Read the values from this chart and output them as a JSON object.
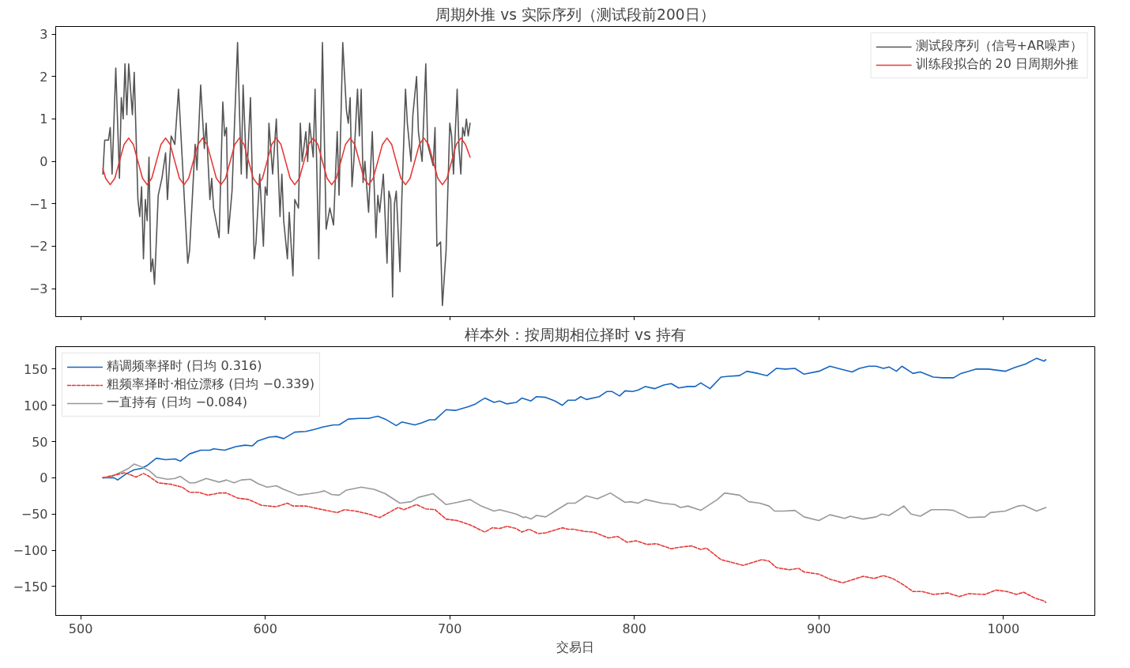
{
  "chart_data": [
    {
      "type": "line",
      "title": "周期外推 vs 实际序列（测试段前200日）",
      "xlim": [
        486.45,
        1049.55
      ],
      "ylim": [
        -3.66,
        3.18
      ],
      "xticks": [
        500,
        600,
        700,
        800,
        900,
        1000
      ],
      "yticks": [
        {
          "value": -3,
          "label": "−3"
        },
        {
          "value": -2,
          "label": "−2"
        },
        {
          "value": -1,
          "label": "−1"
        },
        0,
        1,
        2,
        3
      ],
      "tick_labels": "y",
      "legend": "top right",
      "series": [
        {
          "name": "测试段序列（信号+AR噪声）",
          "color": "#555555",
          "x": [
            512,
            513,
            515,
            516,
            517,
            519,
            521,
            522,
            523,
            524,
            525,
            526,
            528,
            529,
            531,
            532,
            533,
            534,
            535,
            536,
            537,
            538,
            539,
            540,
            542,
            544,
            546,
            547,
            549,
            551,
            553,
            558,
            559,
            562,
            563,
            565,
            567,
            568,
            570,
            571,
            572,
            575,
            577,
            578,
            579,
            580,
            582,
            585,
            587,
            588,
            590,
            592,
            594,
            595,
            597,
            599,
            600,
            601,
            602,
            604,
            606,
            608,
            609,
            610,
            612,
            613,
            615,
            616,
            618,
            619,
            620,
            622,
            623,
            624,
            626,
            627,
            629,
            631,
            633,
            635,
            637,
            639,
            640,
            642,
            644,
            645,
            646,
            647,
            648,
            650,
            651,
            652,
            653,
            654,
            656,
            658,
            660,
            661,
            662,
            664,
            666,
            667,
            668,
            669,
            670,
            671,
            673,
            674,
            676,
            677,
            679,
            680,
            682,
            683,
            685,
            687,
            688,
            691,
            692,
            693,
            695,
            696,
            698,
            700,
            701,
            702,
            704,
            705,
            706,
            707,
            708,
            709,
            710,
            711
          ],
          "values": [
            -0.3,
            0.5,
            0.5,
            0.8,
            -0.3,
            2.2,
            -0.4,
            1.5,
            1.0,
            2.3,
            1.1,
            2.3,
            1.1,
            2.1,
            -0.9,
            -1.3,
            -0.6,
            -2.3,
            -0.9,
            -1.4,
            0.1,
            -2.6,
            -2.3,
            -2.9,
            -0.8,
            -0.4,
            0.2,
            -0.9,
            0.6,
            0.4,
            1.7,
            -2.4,
            -2.1,
            0.4,
            -0.2,
            1.8,
            0.3,
            0.9,
            -0.9,
            -0.4,
            -1.1,
            -1.8,
            1.4,
            0.6,
            0.8,
            -1.7,
            -0.7,
            2.8,
            -0.3,
            1.8,
            -0.4,
            1.5,
            -2.3,
            -1.9,
            -0.3,
            -2.0,
            -0.6,
            -0.8,
            0.9,
            -0.3,
            1.0,
            -1.3,
            -0.3,
            -1.4,
            -2.3,
            -1.2,
            -2.7,
            -0.9,
            -1.1,
            0.9,
            0.0,
            0.7,
            0.0,
            0.9,
            0.1,
            1.7,
            -2.3,
            2.8,
            -1.6,
            -1.1,
            -1.5,
            0.7,
            -0.8,
            2.8,
            1.2,
            0.9,
            1.5,
            -0.6,
            0.0,
            1.7,
            0.6,
            1.7,
            -0.5,
            0.0,
            -1.2,
            0.7,
            -1.8,
            -0.8,
            -1.2,
            -0.3,
            -2.4,
            -0.7,
            -0.9,
            -3.2,
            -1.0,
            -0.7,
            -2.6,
            -0.9,
            1.7,
            0.9,
            0.0,
            1.1,
            2.0,
            0.7,
            0.0,
            2.3,
            0.4,
            -0.1,
            0.8,
            -2.0,
            -1.9,
            -3.4,
            -2.1,
            0.9,
            0.6,
            -0.3,
            1.7,
            0.3,
            -0.3,
            0.8,
            0.6,
            1.0,
            0.6,
            0.9
          ]
        },
        {
          "name": "训练段拟合的 20 日周期外推",
          "color": "#e53935",
          "x": [
            512,
            513.5,
            516,
            518.5,
            521,
            523.5,
            526,
            528.5,
            531,
            533.5,
            536,
            538.5,
            541,
            543.5,
            546,
            548.5,
            551,
            553.5,
            556,
            558.5,
            561,
            563.5,
            566,
            568.5,
            571,
            573.5,
            576,
            578.5,
            581,
            583.5,
            586,
            588.5,
            591,
            593.5,
            596,
            598.5,
            601,
            603.5,
            606,
            608.5,
            611,
            613.5,
            616,
            618.5,
            621,
            623.5,
            626,
            628.5,
            631,
            633.5,
            636,
            638.5,
            641,
            643.5,
            646,
            648.5,
            651,
            653.5,
            656,
            658.5,
            661,
            663.5,
            666,
            668.5,
            671,
            673.5,
            676,
            678.5,
            681,
            683.5,
            686,
            688.5,
            691,
            693.5,
            696,
            698.5,
            701,
            703.5,
            706,
            708.5,
            711
          ],
          "values": [
            -0.17,
            -0.4,
            -0.55,
            -0.4,
            0,
            0.4,
            0.55,
            0.4,
            0,
            -0.4,
            -0.55,
            -0.4,
            0,
            0.4,
            0.55,
            0.4,
            0,
            -0.4,
            -0.55,
            -0.4,
            0,
            0.4,
            0.55,
            0.4,
            0,
            -0.4,
            -0.55,
            -0.4,
            0,
            0.4,
            0.55,
            0.4,
            0,
            -0.4,
            -0.55,
            -0.4,
            0,
            0.4,
            0.55,
            0.4,
            0,
            -0.4,
            -0.55,
            -0.4,
            0,
            0.4,
            0.55,
            0.4,
            0,
            -0.4,
            -0.55,
            -0.4,
            0,
            0.4,
            0.55,
            0.4,
            0,
            -0.4,
            -0.55,
            -0.4,
            0,
            0.4,
            0.55,
            0.4,
            0,
            -0.4,
            -0.55,
            -0.4,
            0,
            0.4,
            0.55,
            0.4,
            0,
            -0.4,
            -0.55,
            -0.4,
            0,
            0.4,
            0.55,
            0.4,
            0.1
          ]
        }
      ]
    },
    {
      "type": "line",
      "title": "样本外：按周期相位择时 vs 持有",
      "xlabel": "交易日",
      "xlim": [
        486.45,
        1049.55
      ],
      "ylim": [
        -190,
        181
      ],
      "xticks": [
        500,
        600,
        700,
        800,
        900,
        1000
      ],
      "yticks": [
        {
          "value": -150,
          "label": "−150"
        },
        {
          "value": -100,
          "label": "−100"
        },
        {
          "value": -50,
          "label": "−50"
        },
        0,
        50,
        100,
        150
      ],
      "legend": "top left",
      "series": [
        {
          "name": "精调频率择时 (日均 0.316)",
          "color": "#1565c0",
          "x": [
            512,
            518,
            520,
            525,
            529,
            533,
            536,
            541,
            546,
            551,
            554,
            559,
            565,
            570,
            572,
            578,
            584,
            589,
            593,
            596,
            602,
            606,
            610,
            616,
            622,
            627,
            631,
            637,
            640,
            645,
            651,
            656,
            661,
            665,
            671,
            674,
            681,
            685,
            689,
            692,
            698,
            703,
            710,
            714,
            717,
            719,
            724,
            727,
            731,
            736,
            739,
            744,
            747,
            752,
            757,
            761,
            764,
            768,
            771,
            774,
            781,
            785,
            788,
            792,
            795,
            799,
            802,
            806,
            811,
            816,
            820,
            824,
            829,
            833,
            836,
            841,
            847,
            851,
            857,
            861,
            867,
            872,
            877,
            882,
            887,
            892,
            900,
            906,
            912,
            918,
            922,
            927,
            931,
            935,
            938,
            942,
            945,
            951,
            955,
            962,
            967,
            973,
            977,
            985,
            992,
            1001,
            1006,
            1012,
            1018,
            1022,
            1023
          ],
          "values": [
            0,
            0,
            -3,
            6,
            11,
            13,
            17,
            27,
            25,
            26,
            23,
            33,
            38,
            38,
            40,
            38,
            43,
            45,
            44,
            51,
            56,
            57,
            54,
            63,
            64,
            67,
            70,
            73,
            73,
            81,
            82,
            82,
            85,
            81,
            72,
            77,
            73,
            76,
            80,
            80,
            94,
            93,
            98,
            102,
            107,
            110,
            104,
            106,
            102,
            104,
            110,
            106,
            112,
            111,
            106,
            100,
            107,
            107,
            112,
            108,
            112,
            119,
            119,
            113,
            120,
            119,
            121,
            126,
            123,
            128,
            130,
            124,
            126,
            126,
            131,
            123,
            139,
            140,
            141,
            147,
            144,
            141,
            151,
            150,
            151,
            143,
            147,
            154,
            150,
            146,
            151,
            154,
            154,
            151,
            153,
            147,
            154,
            144,
            146,
            139,
            138,
            138,
            144,
            150,
            150,
            147,
            152,
            157,
            165,
            161,
            163
          ]
        },
        {
          "name": "粗频率择时·相位漂移 (日均 −0.339)",
          "color": "#e53935",
          "line_style": "dashed",
          "x": [
            512,
            524,
            530,
            534,
            537,
            542,
            549,
            555,
            559,
            564,
            569,
            575,
            579,
            585,
            591,
            598,
            606,
            612,
            615,
            622,
            631,
            639,
            643,
            649,
            656,
            662,
            672,
            675,
            682,
            687,
            692,
            698,
            704,
            711,
            719,
            723,
            727,
            731,
            736,
            739,
            743,
            748,
            752,
            761,
            764,
            767,
            773,
            778,
            786,
            791,
            796,
            801,
            807,
            812,
            820,
            824,
            831,
            836,
            839,
            847,
            853,
            859,
            864,
            869,
            873,
            877,
            884,
            889,
            892,
            900,
            906,
            913,
            924,
            930,
            935,
            940,
            946,
            951,
            956,
            962,
            970,
            976,
            981,
            990,
            996,
            1002,
            1007,
            1011,
            1017,
            1022,
            1023
          ],
          "values": [
            0,
            7,
            1,
            6,
            2,
            -7,
            -9,
            -13,
            -20,
            -20,
            -24,
            -21,
            -21,
            -28,
            -30,
            -38,
            -40,
            -35,
            -39,
            -39,
            -44,
            -48,
            -44,
            -46,
            -50,
            -55,
            -41,
            -44,
            -37,
            -43,
            -44,
            -57,
            -59,
            -65,
            -75,
            -69,
            -70,
            -67,
            -70,
            -75,
            -71,
            -77,
            -76,
            -69,
            -71,
            -71,
            -74,
            -75,
            -83,
            -81,
            -89,
            -87,
            -92,
            -91,
            -98,
            -96,
            -94,
            -99,
            -97,
            -113,
            -117,
            -121,
            -117,
            -113,
            -115,
            -124,
            -127,
            -125,
            -130,
            -133,
            -140,
            -145,
            -136,
            -139,
            -135,
            -139,
            -148,
            -157,
            -157,
            -161,
            -159,
            -164,
            -160,
            -161,
            -155,
            -157,
            -161,
            -158,
            -166,
            -170,
            -172
          ]
        },
        {
          "name": "一直持有 (日均 −0.084)",
          "color": "#999999",
          "x": [
            512,
            516,
            522,
            526,
            529,
            533,
            537,
            541,
            547,
            551,
            554,
            559,
            562,
            568,
            575,
            579,
            583,
            587,
            592,
            596,
            601,
            606,
            610,
            618,
            624,
            629,
            632,
            636,
            640,
            644,
            652,
            659,
            665,
            673,
            679,
            683,
            691,
            698,
            704,
            711,
            717,
            724,
            727,
            736,
            740,
            741,
            744,
            747,
            752,
            757,
            764,
            768,
            774,
            780,
            787,
            795,
            798,
            802,
            806,
            815,
            822,
            825,
            829,
            836,
            845,
            849,
            857,
            862,
            868,
            873,
            876,
            881,
            887,
            892,
            900,
            906,
            914,
            917,
            924,
            931,
            934,
            938,
            946,
            950,
            955,
            961,
            969,
            973,
            981,
            990,
            993,
            1001,
            1008,
            1011,
            1018,
            1023
          ],
          "values": [
            0,
            1,
            8,
            13,
            19,
            15,
            10,
            1,
            -2,
            -1,
            2,
            -7,
            -7,
            -1,
            -6,
            -3,
            -7,
            -3,
            -2,
            -8,
            -13,
            -11,
            -16,
            -24,
            -22,
            -20,
            -18,
            -23,
            -24,
            -17,
            -13,
            -16,
            -22,
            -35,
            -33,
            -27,
            -22,
            -37,
            -34,
            -30,
            -39,
            -46,
            -44,
            -50,
            -55,
            -54,
            -57,
            -52,
            -54,
            -46,
            -35,
            -35,
            -25,
            -29,
            -21,
            -34,
            -33,
            -35,
            -30,
            -35,
            -37,
            -41,
            -39,
            -45,
            -30,
            -21,
            -24,
            -33,
            -35,
            -39,
            -46,
            -46,
            -45,
            -54,
            -59,
            -51,
            -56,
            -53,
            -57,
            -54,
            -50,
            -52,
            -39,
            -50,
            -53,
            -44,
            -44,
            -45,
            -55,
            -54,
            -48,
            -46,
            -39,
            -38,
            -46,
            -41
          ]
        }
      ]
    }
  ]
}
